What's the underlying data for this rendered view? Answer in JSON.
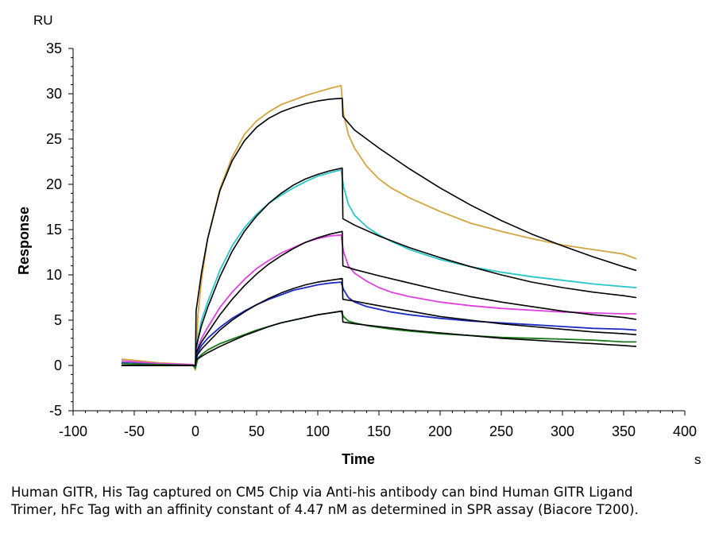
{
  "chart_data": {
    "type": "line",
    "title": "",
    "xlabel": "Time",
    "ylabel": "Response",
    "x_unit": "s",
    "y_unit": "RU",
    "xlim": [
      -100,
      400
    ],
    "ylim": [
      -5,
      35
    ],
    "x_ticks": [
      -100,
      -50,
      0,
      50,
      100,
      150,
      200,
      250,
      300,
      350,
      400
    ],
    "y_ticks": [
      -5,
      0,
      5,
      10,
      15,
      20,
      25,
      30,
      35
    ],
    "grid": false,
    "legend": "none",
    "series": [
      {
        "color": "#d4a440",
        "x": [
          -60,
          -30,
          -2,
          0,
          2,
          5,
          10,
          20,
          30,
          40,
          50,
          60,
          70,
          80,
          90,
          100,
          110,
          119,
          121,
          125,
          130,
          140,
          150,
          160,
          175,
          200,
          225,
          250,
          275,
          300,
          325,
          350,
          360
        ],
        "y": [
          0.7,
          0.3,
          0.1,
          -0.5,
          5.5,
          9.5,
          14.0,
          19.5,
          23.0,
          25.5,
          27.0,
          28.0,
          28.8,
          29.3,
          29.8,
          30.2,
          30.6,
          30.9,
          27.8,
          25.5,
          24.0,
          22.0,
          20.6,
          19.6,
          18.5,
          17.0,
          15.7,
          14.8,
          14.0,
          13.3,
          12.8,
          12.3,
          11.8
        ]
      },
      {
        "color": "#29c6c9",
        "x": [
          -60,
          -30,
          -2,
          0,
          2,
          5,
          10,
          20,
          30,
          40,
          50,
          60,
          70,
          80,
          90,
          100,
          110,
          119,
          121,
          125,
          130,
          140,
          150,
          160,
          175,
          200,
          225,
          250,
          275,
          300,
          325,
          350,
          360
        ],
        "y": [
          0.5,
          0.2,
          0.1,
          -0.3,
          3.0,
          5.0,
          7.0,
          10.5,
          13.2,
          15.2,
          16.7,
          17.9,
          18.8,
          19.6,
          20.3,
          20.9,
          21.3,
          21.6,
          19.8,
          17.8,
          16.6,
          15.3,
          14.4,
          13.7,
          12.8,
          11.7,
          10.9,
          10.3,
          9.8,
          9.4,
          9.0,
          8.7,
          8.6
        ]
      },
      {
        "color": "#e040e0",
        "x": [
          -60,
          -30,
          -2,
          0,
          2,
          5,
          10,
          20,
          30,
          40,
          50,
          60,
          70,
          80,
          90,
          100,
          110,
          119,
          121,
          125,
          130,
          140,
          150,
          160,
          175,
          200,
          225,
          250,
          275,
          300,
          325,
          350,
          360
        ],
        "y": [
          0.5,
          0.2,
          0.1,
          -0.3,
          2.0,
          3.0,
          4.2,
          6.4,
          8.1,
          9.5,
          10.7,
          11.6,
          12.4,
          13.0,
          13.6,
          14.0,
          14.3,
          14.4,
          12.6,
          11.0,
          10.2,
          9.3,
          8.6,
          8.1,
          7.6,
          7.0,
          6.6,
          6.3,
          6.1,
          5.9,
          5.8,
          5.7,
          5.7
        ]
      },
      {
        "color": "#1c2bc4",
        "x": [
          -60,
          -30,
          -2,
          0,
          2,
          5,
          10,
          20,
          30,
          40,
          50,
          60,
          70,
          80,
          90,
          100,
          110,
          119,
          121,
          125,
          130,
          140,
          150,
          160,
          175,
          200,
          225,
          250,
          275,
          300,
          325,
          350,
          360
        ],
        "y": [
          0.3,
          0.1,
          0.0,
          -0.3,
          1.5,
          2.2,
          3.0,
          4.2,
          5.2,
          6.0,
          6.7,
          7.3,
          7.8,
          8.3,
          8.6,
          8.9,
          9.1,
          9.2,
          8.4,
          7.5,
          7.0,
          6.5,
          6.2,
          5.9,
          5.6,
          5.2,
          4.9,
          4.7,
          4.5,
          4.3,
          4.1,
          4.0,
          3.9
        ]
      },
      {
        "color": "#1a7a1a",
        "x": [
          -60,
          -30,
          -2,
          0,
          2,
          5,
          10,
          20,
          30,
          40,
          50,
          60,
          70,
          80,
          90,
          100,
          110,
          119,
          121,
          125,
          130,
          140,
          150,
          160,
          175,
          200,
          225,
          250,
          275,
          300,
          325,
          350,
          360
        ],
        "y": [
          0.2,
          0.1,
          0.0,
          -0.3,
          0.8,
          1.2,
          1.7,
          2.4,
          2.9,
          3.4,
          3.9,
          4.3,
          4.7,
          5.0,
          5.3,
          5.6,
          5.8,
          6.0,
          5.4,
          4.9,
          4.7,
          4.4,
          4.2,
          4.0,
          3.8,
          3.5,
          3.3,
          3.1,
          3.0,
          2.9,
          2.8,
          2.6,
          2.6
        ]
      },
      {
        "color": "#000000",
        "x": [
          -60,
          -2,
          0,
          0.5,
          5,
          10,
          20,
          30,
          40,
          50,
          60,
          70,
          80,
          90,
          100,
          110,
          120,
          120.5,
          130,
          150,
          175,
          200,
          225,
          250,
          275,
          300,
          325,
          350,
          360
        ],
        "y": [
          0,
          0,
          0,
          6.0,
          10.3,
          14.0,
          19.3,
          22.6,
          24.8,
          26.3,
          27.3,
          28.0,
          28.5,
          28.9,
          29.2,
          29.4,
          29.5,
          27.5,
          26.0,
          24.0,
          21.7,
          19.6,
          17.7,
          16.0,
          14.5,
          13.2,
          12.0,
          10.9,
          10.5
        ]
      },
      {
        "color": "#000000",
        "x": [
          -60,
          -2,
          0,
          0.5,
          5,
          10,
          20,
          30,
          40,
          50,
          60,
          70,
          80,
          90,
          100,
          110,
          120,
          120.5,
          130,
          150,
          175,
          200,
          225,
          250,
          275,
          300,
          325,
          350,
          360
        ],
        "y": [
          0,
          0,
          0,
          2.0,
          4.4,
          6.4,
          9.8,
          12.6,
          14.8,
          16.5,
          17.9,
          19.0,
          19.9,
          20.6,
          21.1,
          21.5,
          21.8,
          16.2,
          15.5,
          14.3,
          13.0,
          11.9,
          10.9,
          10.0,
          9.2,
          8.6,
          8.1,
          7.7,
          7.5
        ]
      },
      {
        "color": "#000000",
        "x": [
          -60,
          -2,
          0,
          0.5,
          5,
          10,
          20,
          30,
          40,
          50,
          60,
          70,
          80,
          90,
          100,
          110,
          120,
          120.5,
          130,
          150,
          175,
          200,
          225,
          250,
          275,
          300,
          325,
          350,
          360
        ],
        "y": [
          0,
          0,
          0,
          1.4,
          2.6,
          3.6,
          5.6,
          7.3,
          8.8,
          10.1,
          11.2,
          12.1,
          12.9,
          13.6,
          14.1,
          14.5,
          14.8,
          11.0,
          10.6,
          9.9,
          9.1,
          8.3,
          7.6,
          7.0,
          6.5,
          6.0,
          5.6,
          5.3,
          5.1
        ]
      },
      {
        "color": "#000000",
        "x": [
          -60,
          -2,
          0,
          0.5,
          5,
          10,
          20,
          30,
          40,
          50,
          60,
          70,
          80,
          90,
          100,
          110,
          120,
          120.5,
          130,
          150,
          175,
          200,
          225,
          250,
          275,
          300,
          325,
          350,
          360
        ],
        "y": [
          0,
          0,
          0,
          1.0,
          1.8,
          2.5,
          3.9,
          5.0,
          5.9,
          6.7,
          7.4,
          8.0,
          8.5,
          8.9,
          9.2,
          9.4,
          9.6,
          7.3,
          7.1,
          6.6,
          6.0,
          5.4,
          5.0,
          4.6,
          4.3,
          4.0,
          3.7,
          3.5,
          3.4
        ]
      },
      {
        "color": "#000000",
        "x": [
          -60,
          -2,
          0,
          0.5,
          5,
          10,
          20,
          30,
          40,
          50,
          60,
          70,
          80,
          90,
          100,
          110,
          120,
          120.5,
          130,
          150,
          175,
          200,
          225,
          250,
          275,
          300,
          325,
          350,
          360
        ],
        "y": [
          0,
          0,
          0,
          0.6,
          1.0,
          1.4,
          2.1,
          2.7,
          3.3,
          3.8,
          4.3,
          4.7,
          5.0,
          5.3,
          5.6,
          5.8,
          6.0,
          4.8,
          4.6,
          4.3,
          3.9,
          3.6,
          3.3,
          3.0,
          2.8,
          2.6,
          2.4,
          2.2,
          2.1
        ]
      }
    ]
  },
  "caption": "Human GITR, His Tag captured on CM5 Chip via Anti-his antibody can bind Human GITR Ligand Trimer, hFc Tag with an affinity constant of 4.47 nM as determined in SPR assay (Biacore T200)."
}
